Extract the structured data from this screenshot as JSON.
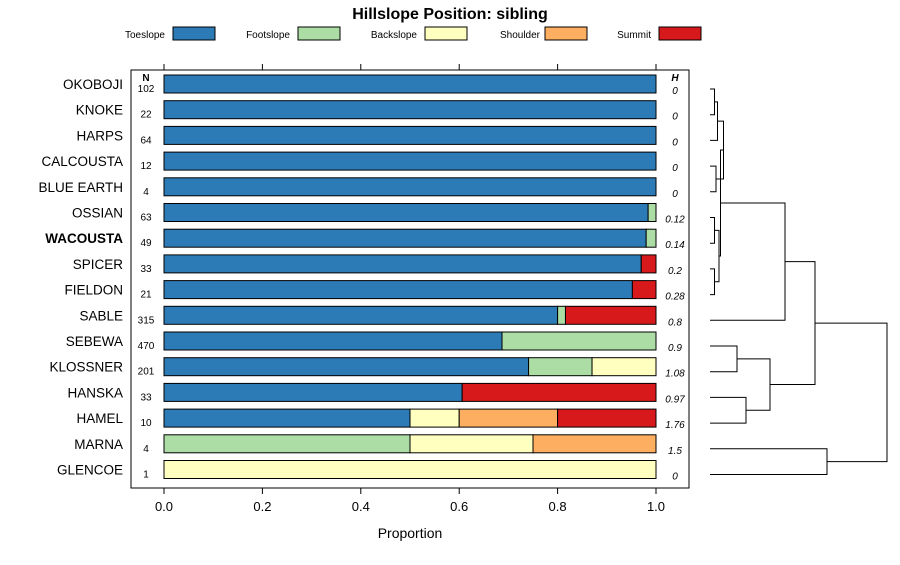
{
  "chart_data": {
    "type": "stacked-bar-horizontal",
    "title": "Hillslope Position: sibling",
    "xlabel": "Proportion",
    "xlim": [
      0,
      1
    ],
    "xticks": [
      "0.0",
      "0.2",
      "0.4",
      "0.6",
      "0.8",
      "1.0"
    ],
    "n_header": "N",
    "h_header": "H",
    "highlight": "WACOUSTA",
    "legend": [
      {
        "name": "Toeslope",
        "color": "#2C7BB6"
      },
      {
        "name": "Footslope",
        "color": "#ABDDA4"
      },
      {
        "name": "Backslope",
        "color": "#FFFFBF"
      },
      {
        "name": "Shoulder",
        "color": "#FDAE61"
      },
      {
        "name": "Summit",
        "color": "#D7191C"
      }
    ],
    "rows": [
      {
        "label": "OKOBOJI",
        "n": "102",
        "h": "0",
        "values": [
          1,
          0,
          0,
          0,
          0
        ]
      },
      {
        "label": "KNOKE",
        "n": "22",
        "h": "0",
        "values": [
          1,
          0,
          0,
          0,
          0
        ]
      },
      {
        "label": "HARPS",
        "n": "64",
        "h": "0",
        "values": [
          1,
          0,
          0,
          0,
          0
        ]
      },
      {
        "label": "CALCOUSTA",
        "n": "12",
        "h": "0",
        "values": [
          1,
          0,
          0,
          0,
          0
        ]
      },
      {
        "label": "BLUE EARTH",
        "n": "4",
        "h": "0",
        "values": [
          1,
          0,
          0,
          0,
          0
        ]
      },
      {
        "label": "OSSIAN",
        "n": "63",
        "h": "0.12",
        "values": [
          0.984,
          0.016,
          0,
          0,
          0
        ]
      },
      {
        "label": "WACOUSTA",
        "n": "49",
        "h": "0.14",
        "values": [
          0.98,
          0.02,
          0,
          0,
          0
        ]
      },
      {
        "label": "SPICER",
        "n": "33",
        "h": "0.2",
        "values": [
          0.97,
          0,
          0,
          0,
          0.03
        ]
      },
      {
        "label": "FIELDON",
        "n": "21",
        "h": "0.28",
        "values": [
          0.952,
          0,
          0,
          0,
          0.048
        ]
      },
      {
        "label": "SABLE",
        "n": "315",
        "h": "0.8",
        "values": [
          0.8,
          0.016,
          0,
          0,
          0.184
        ]
      },
      {
        "label": "SEBEWA",
        "n": "470",
        "h": "0.9",
        "values": [
          0.687,
          0.313,
          0,
          0,
          0
        ]
      },
      {
        "label": "KLOSSNER",
        "n": "201",
        "h": "1.08",
        "values": [
          0.741,
          0.129,
          0.13,
          0,
          0
        ]
      },
      {
        "label": "HANSKA",
        "n": "33",
        "h": "0.97",
        "values": [
          0.606,
          0,
          0,
          0,
          0.394
        ]
      },
      {
        "label": "HAMEL",
        "n": "10",
        "h": "1.76",
        "values": [
          0.5,
          0,
          0.1,
          0.2,
          0.2
        ]
      },
      {
        "label": "MARNA",
        "n": "4",
        "h": "1.5",
        "values": [
          0,
          0.5,
          0.25,
          0.25,
          0
        ]
      },
      {
        "label": "GLENCOE",
        "n": "1",
        "h": "0",
        "values": [
          0,
          0,
          1,
          0,
          0
        ]
      }
    ],
    "dendrogram": [
      {
        "a": 3,
        "b": 4,
        "h": 0.02
      },
      {
        "a": 0,
        "b": 1,
        "h": 0.015
      },
      {
        "a": 17,
        "b": 2,
        "h": 0.025
      },
      {
        "a": 16,
        "b": 18,
        "h": 0.045
      },
      {
        "a": 5,
        "b": 6,
        "h": 0.015
      },
      {
        "a": 7,
        "b": 8,
        "h": 0.015
      },
      {
        "a": 20,
        "b": 21,
        "h": 0.03
      },
      {
        "a": 19,
        "b": 22,
        "h": 0.035
      },
      {
        "a": 10,
        "b": 11,
        "h": 0.09
      },
      {
        "a": 12,
        "b": 13,
        "h": 0.12
      },
      {
        "a": 23,
        "b": 9,
        "h": 0.25
      },
      {
        "a": 24,
        "b": 25,
        "h": 0.2
      },
      {
        "a": 26,
        "b": 27,
        "h": 0.35
      },
      {
        "a": 14,
        "b": 15,
        "h": 0.39
      },
      {
        "a": 28,
        "b": 29,
        "h": 0.59
      }
    ]
  }
}
